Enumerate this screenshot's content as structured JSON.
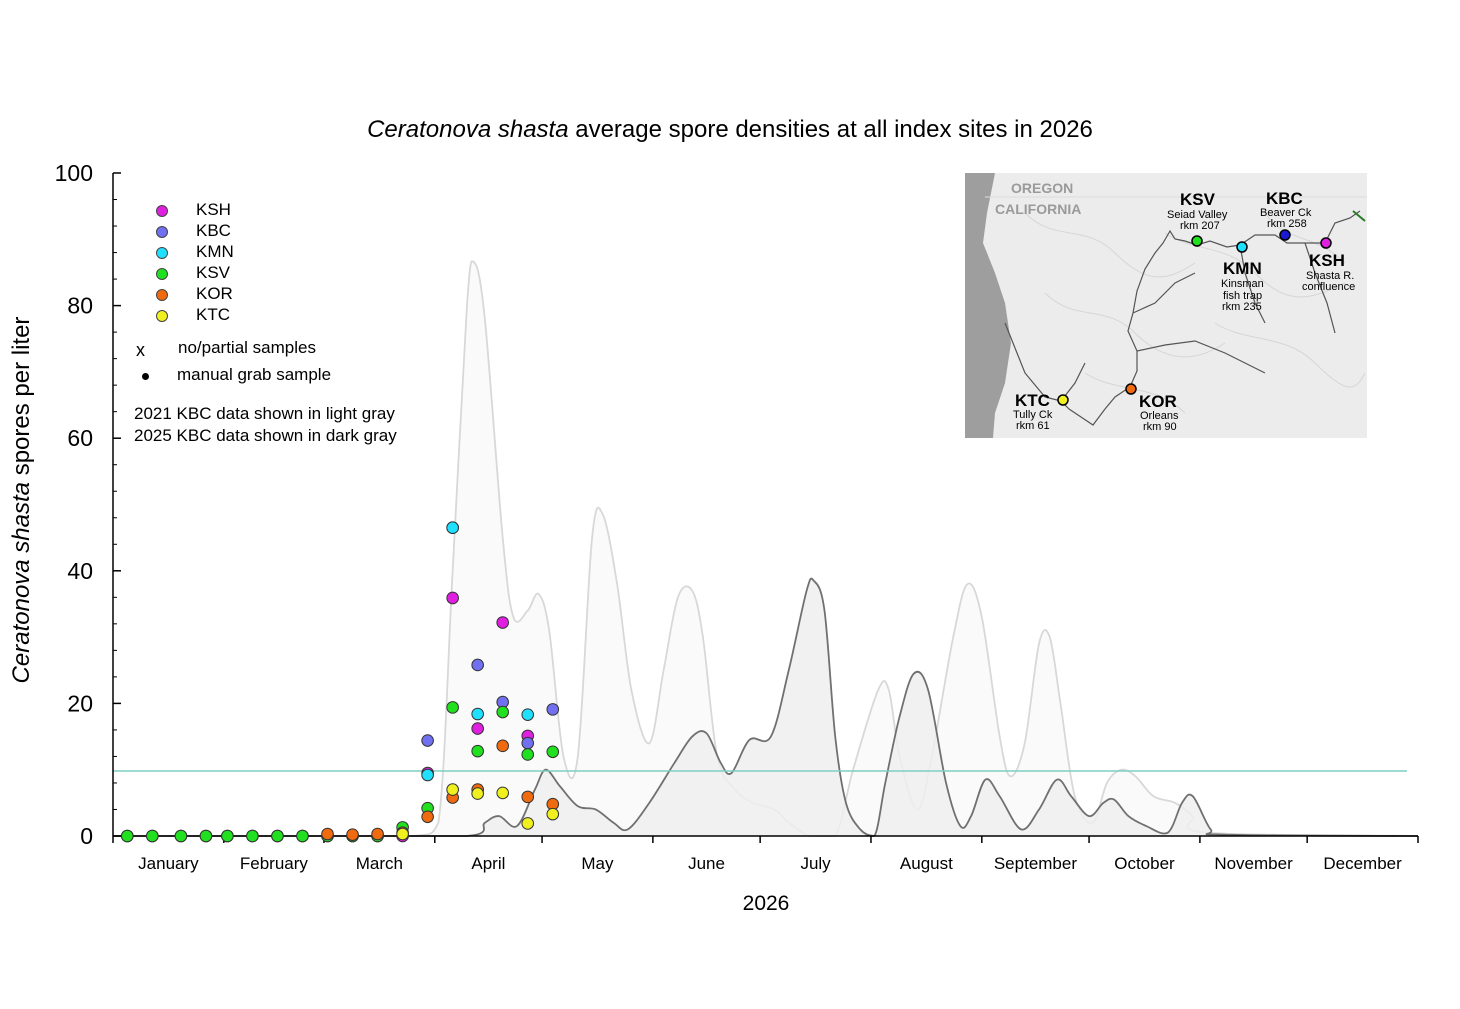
{
  "title_italic": "Ceratonova shasta",
  "title_rest": " average spore densities at all index sites in 2026",
  "ylabel_italic": "Ceratonova shasta",
  "ylabel_rest": " spores per liter",
  "xlabel": "2026",
  "legend": {
    "sites": [
      {
        "name": "KSH",
        "color": "#e020e0"
      },
      {
        "name": "KBC",
        "color": "#7070f0"
      },
      {
        "name": "KMN",
        "color": "#20e0ff"
      },
      {
        "name": "KSV",
        "color": "#20e020"
      },
      {
        "name": "KOR",
        "color": "#f06a10"
      },
      {
        "name": "KTC",
        "color": "#f0f020"
      }
    ],
    "x_marker": "x",
    "x_label": "no/partial samples",
    "dot_label": "manual grab sample",
    "note_2021": "2021 KBC data shown in light gray",
    "note_2025": "2025 KBC data shown in dark gray"
  },
  "map_labels": {
    "oregon": "OREGON",
    "california": "CALIFORNIA",
    "ksv": {
      "code": "KSV",
      "name": "Seiad Valley",
      "rkm": "rkm 207"
    },
    "kbc": {
      "code": "KBC",
      "name": "Beaver Ck",
      "rkm": "rkm 258"
    },
    "kmn": {
      "code": "KMN",
      "name1": "Kinsman",
      "name2": "fish trap",
      "rkm": "rkm 235"
    },
    "ksh": {
      "code": "KSH",
      "name1": "Shasta R.",
      "name2": "confluence"
    },
    "ktc": {
      "code": "KTC",
      "name": "Tully Ck",
      "rkm": "rkm 61"
    },
    "kor": {
      "code": "KOR",
      "name": "Orleans",
      "rkm": "rkm 90"
    }
  },
  "chart_data": {
    "type": "scatter",
    "x_axis": "day of year 2026",
    "xlabel": "2026",
    "ylabel": "Ceratonova shasta spores per liter",
    "ylim": [
      0,
      100
    ],
    "yticks": [
      0,
      20,
      40,
      60,
      80,
      100
    ],
    "xlim": [
      1,
      366
    ],
    "month_labels": [
      "January",
      "February",
      "March",
      "April",
      "May",
      "June",
      "July",
      "August",
      "September",
      "October",
      "November",
      "December"
    ],
    "month_starts": [
      1,
      32,
      60,
      91,
      121,
      152,
      182,
      213,
      244,
      274,
      305,
      335
    ],
    "threshold_line": {
      "value": 9.8,
      "color": "#7ccfc0"
    },
    "series": [
      {
        "name": "KSH",
        "color": "#e020e0",
        "points": [
          [
            5,
            0
          ],
          [
            12,
            0
          ],
          [
            20,
            0
          ],
          [
            27,
            0
          ],
          [
            33,
            0
          ],
          [
            40,
            0
          ],
          [
            47,
            0
          ],
          [
            54,
            0
          ],
          [
            61,
            0
          ],
          [
            68,
            0
          ],
          [
            75,
            0
          ],
          [
            82,
            0
          ],
          [
            89,
            9.5
          ],
          [
            96,
            35.9
          ],
          [
            103,
            16.2
          ],
          [
            110,
            32.2
          ],
          [
            117,
            15.1
          ]
        ]
      },
      {
        "name": "KBC",
        "color": "#7070f0",
        "points": [
          [
            89,
            14.4
          ],
          [
            96,
            46.5
          ],
          [
            103,
            25.8
          ],
          [
            110,
            20.2
          ],
          [
            117,
            14.0
          ],
          [
            124,
            19.1
          ]
        ]
      },
      {
        "name": "KMN",
        "color": "#20e0ff",
        "points": [
          [
            89,
            9.2
          ],
          [
            96,
            46.5
          ],
          [
            103,
            18.4
          ],
          [
            117,
            18.3
          ]
        ]
      },
      {
        "name": "KSV",
        "color": "#20e020",
        "points": [
          [
            5,
            0
          ],
          [
            12,
            0
          ],
          [
            20,
            0
          ],
          [
            27,
            0
          ],
          [
            33,
            0
          ],
          [
            40,
            0
          ],
          [
            47,
            0
          ],
          [
            54,
            0
          ],
          [
            61,
            0
          ],
          [
            68,
            0
          ],
          [
            75,
            0
          ],
          [
            82,
            1.3
          ],
          [
            89,
            4.2
          ],
          [
            96,
            19.4
          ],
          [
            103,
            12.8
          ],
          [
            110,
            18.7
          ],
          [
            117,
            12.3
          ],
          [
            124,
            12.7
          ]
        ]
      },
      {
        "name": "KOR",
        "color": "#f06a10",
        "points": [
          [
            61,
            0.3
          ],
          [
            68,
            0.2
          ],
          [
            75,
            0.3
          ],
          [
            82,
            0.5
          ],
          [
            89,
            2.9
          ],
          [
            96,
            5.8
          ],
          [
            103,
            7.0
          ],
          [
            110,
            13.6
          ],
          [
            117,
            5.9
          ],
          [
            124,
            4.8
          ]
        ]
      },
      {
        "name": "KTC",
        "color": "#f0f020",
        "points": [
          [
            82,
            0.3
          ],
          [
            96,
            7.0
          ],
          [
            103,
            6.4
          ],
          [
            110,
            6.5
          ],
          [
            117,
            1.9
          ],
          [
            124,
            3.3
          ]
        ]
      }
    ],
    "background_series": [
      {
        "name": "2021 KBC",
        "color": "#d8d8d8",
        "fill": "#fafafa",
        "points": [
          [
            1,
            0
          ],
          [
            60,
            0
          ],
          [
            85,
            0
          ],
          [
            92,
            2
          ],
          [
            96,
            40
          ],
          [
            100,
            80
          ],
          [
            102,
            86.5
          ],
          [
            105,
            78
          ],
          [
            110,
            45
          ],
          [
            113,
            33
          ],
          [
            117,
            34
          ],
          [
            120,
            36.5
          ],
          [
            123,
            31
          ],
          [
            127,
            12
          ],
          [
            131,
            12
          ],
          [
            135,
            45
          ],
          [
            138,
            48.5
          ],
          [
            142,
            38
          ],
          [
            146,
            22
          ],
          [
            151,
            14
          ],
          [
            155,
            25
          ],
          [
            159,
            36
          ],
          [
            163,
            37
          ],
          [
            166,
            30
          ],
          [
            170,
            12
          ],
          [
            175,
            7
          ],
          [
            180,
            5
          ],
          [
            186,
            4
          ],
          [
            190,
            2
          ],
          [
            196,
            0
          ],
          [
            203,
            0
          ],
          [
            208,
            10
          ],
          [
            215,
            22
          ],
          [
            218,
            22
          ],
          [
            221,
            12
          ],
          [
            226,
            4
          ],
          [
            230,
            12
          ],
          [
            236,
            30
          ],
          [
            240,
            38
          ],
          [
            244,
            33
          ],
          [
            249,
            15
          ],
          [
            252,
            9
          ],
          [
            256,
            14
          ],
          [
            260,
            29
          ],
          [
            263,
            30
          ],
          [
            266,
            20
          ],
          [
            270,
            6
          ],
          [
            275,
            2
          ],
          [
            279,
            8
          ],
          [
            283,
            10
          ],
          [
            287,
            9
          ],
          [
            292,
            6
          ],
          [
            298,
            5
          ],
          [
            303,
            3
          ],
          [
            307,
            0.5
          ],
          [
            366,
            0
          ]
        ]
      },
      {
        "name": "2025 KBC",
        "color": "#707070",
        "fill": "#efefef",
        "points": [
          [
            1,
            0
          ],
          [
            60,
            0
          ],
          [
            100,
            0
          ],
          [
            105,
            2
          ],
          [
            109,
            3
          ],
          [
            114,
            1.5
          ],
          [
            119,
            7
          ],
          [
            122,
            10
          ],
          [
            126,
            7.5
          ],
          [
            131,
            4.5
          ],
          [
            136,
            4
          ],
          [
            141,
            2
          ],
          [
            145,
            1
          ],
          [
            151,
            5
          ],
          [
            158,
            11
          ],
          [
            163,
            15
          ],
          [
            167,
            15.5
          ],
          [
            171,
            11
          ],
          [
            174,
            9.5
          ],
          [
            179,
            14.5
          ],
          [
            185,
            15
          ],
          [
            190,
            25
          ],
          [
            195,
            37
          ],
          [
            197,
            38.5
          ],
          [
            200,
            34
          ],
          [
            203,
            15
          ],
          [
            206,
            5
          ],
          [
            210,
            1
          ],
          [
            214,
            0
          ],
          [
            217,
            8
          ],
          [
            221,
            18
          ],
          [
            225,
            24.5
          ],
          [
            229,
            22
          ],
          [
            234,
            8
          ],
          [
            238,
            1.5
          ],
          [
            241,
            3
          ],
          [
            245,
            8.5
          ],
          [
            249,
            6
          ],
          [
            255,
            1
          ],
          [
            260,
            4
          ],
          [
            265,
            8.5
          ],
          [
            269,
            6
          ],
          [
            274,
            3
          ],
          [
            278,
            5
          ],
          [
            281,
            5.5
          ],
          [
            285,
            3
          ],
          [
            290,
            1.5
          ],
          [
            296,
            0.5
          ],
          [
            300,
            5
          ],
          [
            303,
            6
          ],
          [
            308,
            1
          ],
          [
            312,
            0.2
          ],
          [
            366,
            0
          ]
        ]
      }
    ]
  }
}
